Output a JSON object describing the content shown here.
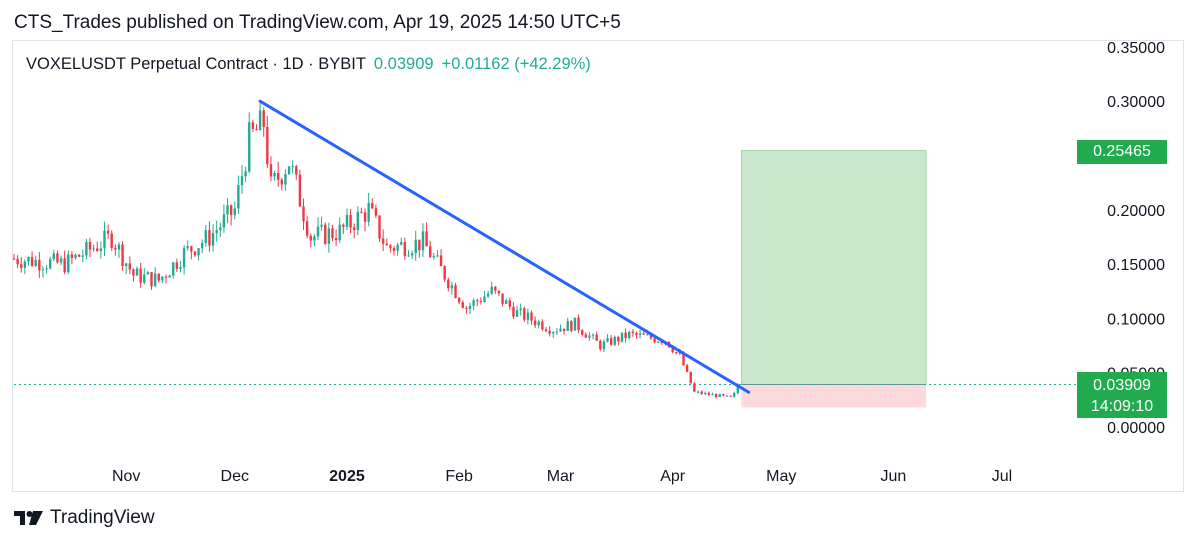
{
  "publisher": "CTS_Trades published on TradingView.com, Apr 19, 2025 14:50 UTC+5",
  "legend": {
    "symbol": "VOXELUSDT Perpetual Contract · 1D · BYBIT",
    "price": "0.03909",
    "change": "+0.01162 (+42.29%)"
  },
  "badges": {
    "take_profit": "0.25465",
    "last_price": "0.03909",
    "countdown": "14:09:10"
  },
  "brand": "TradingView",
  "colors": {
    "up": "#22ab94",
    "down": "#f23645",
    "trendline": "#2962ff",
    "profit_zone": "#c8e6c9",
    "loss_zone": "#fcd9dd",
    "badge": "#22ab4e"
  },
  "icons": {
    "logo": "tradingview-logo-icon"
  },
  "chart_data": {
    "type": "candlestick",
    "symbol": "VOXELUSDT",
    "exchange": "BYBIT",
    "interval": "1D",
    "y_ticks": [
      "0.35000",
      "0.30000",
      "0.20000",
      "0.15000",
      "0.10000",
      "0.05000",
      "0.00000"
    ],
    "x_ticks": [
      "Nov",
      "Dec",
      "2025",
      "Feb",
      "Mar",
      "Apr",
      "May",
      "Jun",
      "Jul"
    ],
    "ylim": [
      0,
      0.35
    ],
    "grid": false,
    "last_price": 0.03909,
    "price_key_points": [
      {
        "date": "2024-10-01",
        "close": 0.155
      },
      {
        "date": "2024-10-15",
        "close": 0.15
      },
      {
        "date": "2024-10-28",
        "close": 0.175
      },
      {
        "date": "2024-11-03",
        "close": 0.14
      },
      {
        "date": "2024-11-10",
        "close": 0.135
      },
      {
        "date": "2024-11-17",
        "close": 0.16
      },
      {
        "date": "2024-11-24",
        "close": 0.175
      },
      {
        "date": "2024-12-01",
        "close": 0.2
      },
      {
        "date": "2024-12-05",
        "close": 0.265
      },
      {
        "date": "2024-12-09",
        "close": 0.28
      },
      {
        "date": "2024-12-11",
        "close": 0.22
      },
      {
        "date": "2024-12-16",
        "close": 0.245
      },
      {
        "date": "2024-12-22",
        "close": 0.175
      },
      {
        "date": "2024-12-30",
        "close": 0.18
      },
      {
        "date": "2025-01-07",
        "close": 0.2
      },
      {
        "date": "2025-01-12",
        "close": 0.165
      },
      {
        "date": "2025-01-22",
        "close": 0.17
      },
      {
        "date": "2025-01-28",
        "close": 0.14
      },
      {
        "date": "2025-02-03",
        "close": 0.11
      },
      {
        "date": "2025-02-10",
        "close": 0.125
      },
      {
        "date": "2025-02-17",
        "close": 0.105
      },
      {
        "date": "2025-02-27",
        "close": 0.09
      },
      {
        "date": "2025-03-05",
        "close": 0.095
      },
      {
        "date": "2025-03-12",
        "close": 0.075
      },
      {
        "date": "2025-03-20",
        "close": 0.085
      },
      {
        "date": "2025-03-30",
        "close": 0.08
      },
      {
        "date": "2025-04-03",
        "close": 0.065
      },
      {
        "date": "2025-04-07",
        "close": 0.032
      },
      {
        "date": "2025-04-17",
        "close": 0.027
      },
      {
        "date": "2025-04-18",
        "close": 0.03
      },
      {
        "date": "2025-04-19",
        "close": 0.03909
      }
    ],
    "trendline": {
      "start": {
        "date": "2024-12-08",
        "price": 0.3
      },
      "end": {
        "date": "2025-04-22",
        "price": 0.032
      }
    },
    "long_position": {
      "start_date": "2025-04-20",
      "end_date": "2025-06-10",
      "entry": 0.03909,
      "take_profit": 0.25465,
      "stop_loss": 0.018
    }
  }
}
